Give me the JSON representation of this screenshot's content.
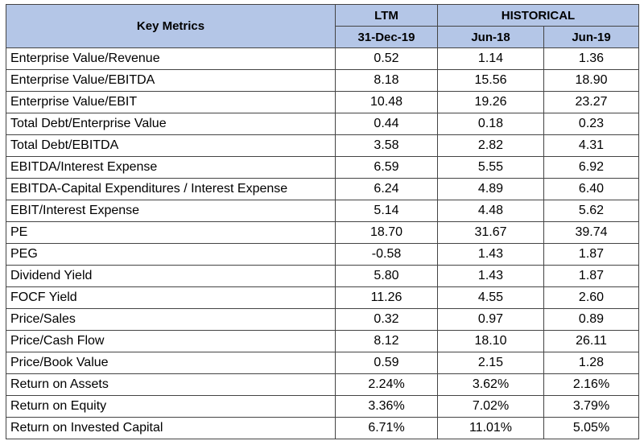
{
  "header": {
    "key_metrics": "Key Metrics",
    "ltm": "LTM",
    "historical": "HISTORICAL",
    "periods": [
      "31-Dec-19",
      "Jun-18",
      "Jun-19"
    ]
  },
  "rows": [
    {
      "metric": "Enterprise Value/Revenue",
      "values": [
        "0.52",
        "1.14",
        "1.36"
      ]
    },
    {
      "metric": "Enterprise Value/EBITDA",
      "values": [
        "8.18",
        "15.56",
        "18.90"
      ]
    },
    {
      "metric": "Enterprise Value/EBIT",
      "values": [
        "10.48",
        "19.26",
        "23.27"
      ]
    },
    {
      "metric": "Total Debt/Enterprise Value",
      "values": [
        "0.44",
        "0.18",
        "0.23"
      ]
    },
    {
      "metric": "Total Debt/EBITDA",
      "values": [
        "3.58",
        "2.82",
        "4.31"
      ]
    },
    {
      "metric": "EBITDA/Interest Expense",
      "values": [
        "6.59",
        "5.55",
        "6.92"
      ]
    },
    {
      "metric": "EBITDA-Capital Expenditures / Interest Expense",
      "values": [
        "6.24",
        "4.89",
        "6.40"
      ]
    },
    {
      "metric": "EBIT/Interest Expense",
      "values": [
        "5.14",
        "4.48",
        "5.62"
      ]
    },
    {
      "metric": "PE",
      "values": [
        "18.70",
        "31.67",
        "39.74"
      ]
    },
    {
      "metric": "PEG",
      "values": [
        "-0.58",
        "1.43",
        "1.87"
      ]
    },
    {
      "metric": "Dividend Yield",
      "values": [
        "5.80",
        "1.43",
        "1.87"
      ]
    },
    {
      "metric": "FOCF Yield",
      "values": [
        "11.26",
        "4.55",
        "2.60"
      ]
    },
    {
      "metric": "Price/Sales",
      "values": [
        "0.32",
        "0.97",
        "0.89"
      ]
    },
    {
      "metric": "Price/Cash Flow",
      "values": [
        "8.12",
        "18.10",
        "26.11"
      ]
    },
    {
      "metric": "Price/Book Value",
      "values": [
        "0.59",
        "2.15",
        "1.28"
      ]
    },
    {
      "metric": "Return on Assets",
      "values": [
        "2.24%",
        "3.62%",
        "2.16%"
      ]
    },
    {
      "metric": "Return on Equity",
      "values": [
        "3.36%",
        "7.02%",
        "3.79%"
      ]
    },
    {
      "metric": "Return on Invested Capital",
      "values": [
        "6.71%",
        "11.01%",
        "5.05%"
      ]
    }
  ],
  "colors": {
    "header_background": "#b4c6e7",
    "border": "#444444"
  }
}
